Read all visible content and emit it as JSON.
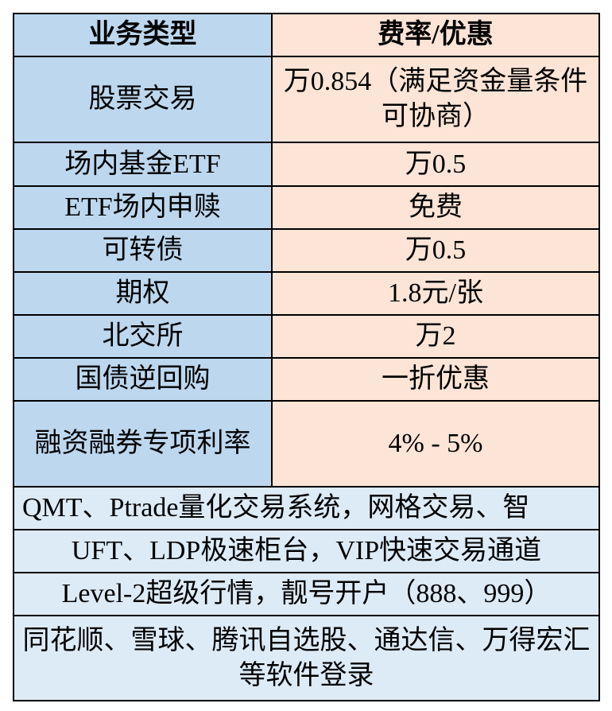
{
  "header": {
    "col1": "业务类型",
    "col2": "费率/优惠"
  },
  "rows": [
    {
      "type": "股票交易",
      "fee": "万0.854（满足资金量条件可协商）"
    },
    {
      "type": "场内基金ETF",
      "fee": "万0.5"
    },
    {
      "type": "ETF场内申赎",
      "fee": "免费"
    },
    {
      "type": "可转债",
      "fee": "万0.5"
    },
    {
      "type": "期权",
      "fee": "1.8元/张"
    },
    {
      "type": "北交所",
      "fee": "万2"
    },
    {
      "type": "国债逆回购",
      "fee": "一折优惠"
    },
    {
      "type": "融资融券专项利率",
      "fee": "4% - 5%"
    }
  ],
  "features": [
    "QMT、Ptrade量化交易系统，网格交易、智",
    "UFT、LDP极速柜台，VIP快速交易通道",
    "Level-2超级行情，靓号开户（888、999）",
    "同花顺、雪球、腾讯自选股、通达信、万得宏汇等软件登录"
  ],
  "colors": {
    "left": "#BDD7EE",
    "right": "#FCE4D6",
    "feature": "#DDEBF7"
  }
}
